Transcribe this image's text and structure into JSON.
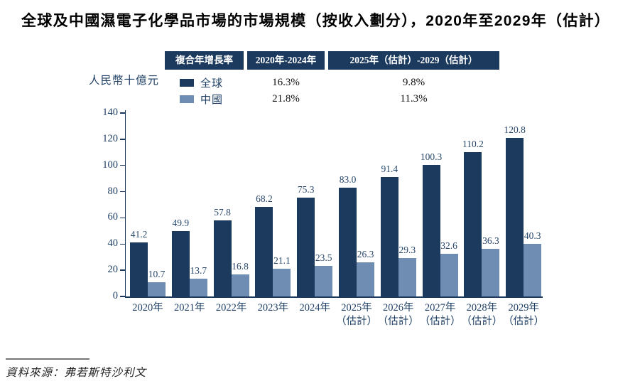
{
  "title": "全球及中國濕電子化學品市場的市場規模（按收入劃分），2020年至2029年（估計）",
  "cagr_table": {
    "headers": [
      "複合年增長率",
      "2020年-2024年",
      "2025年（估計）-2029（估計）"
    ],
    "rows": [
      {
        "series": "全球",
        "color": "#1c3a5e",
        "cagr_2020_2024": "16.3%",
        "cagr_2025_2029": "9.8%"
      },
      {
        "series": "中國",
        "color": "#6f8db3",
        "cagr_2020_2024": "21.8%",
        "cagr_2025_2029": "11.3%"
      }
    ]
  },
  "chart_data": {
    "type": "bar",
    "unit_label": "人民幣十億元",
    "categories": [
      {
        "label": "2020年",
        "sublabel": ""
      },
      {
        "label": "2021年",
        "sublabel": ""
      },
      {
        "label": "2022年",
        "sublabel": ""
      },
      {
        "label": "2023年",
        "sublabel": ""
      },
      {
        "label": "2024年",
        "sublabel": ""
      },
      {
        "label": "2025年",
        "sublabel": "（估計）"
      },
      {
        "label": "2026年",
        "sublabel": "（估計）"
      },
      {
        "label": "2027年",
        "sublabel": "（估計）"
      },
      {
        "label": "2028年",
        "sublabel": "（估計）"
      },
      {
        "label": "2029年",
        "sublabel": "（估計）"
      }
    ],
    "series": [
      {
        "name": "全球",
        "color": "#1c3a5e",
        "values": [
          41.2,
          49.9,
          57.8,
          68.2,
          75.3,
          83.0,
          91.4,
          100.3,
          110.2,
          120.8
        ]
      },
      {
        "name": "中國",
        "color": "#6f8db3",
        "values": [
          10.7,
          13.7,
          16.8,
          21.1,
          23.5,
          26.3,
          29.3,
          32.6,
          36.3,
          40.3
        ]
      }
    ],
    "ylim": [
      0,
      140
    ],
    "yticks": [
      0,
      20,
      40,
      60,
      80,
      100,
      120,
      140
    ],
    "grid": false,
    "legend_position": "top",
    "value_labels": true,
    "value_label_decimals": 1
  },
  "source": "資料來源：弗若斯特沙利文"
}
